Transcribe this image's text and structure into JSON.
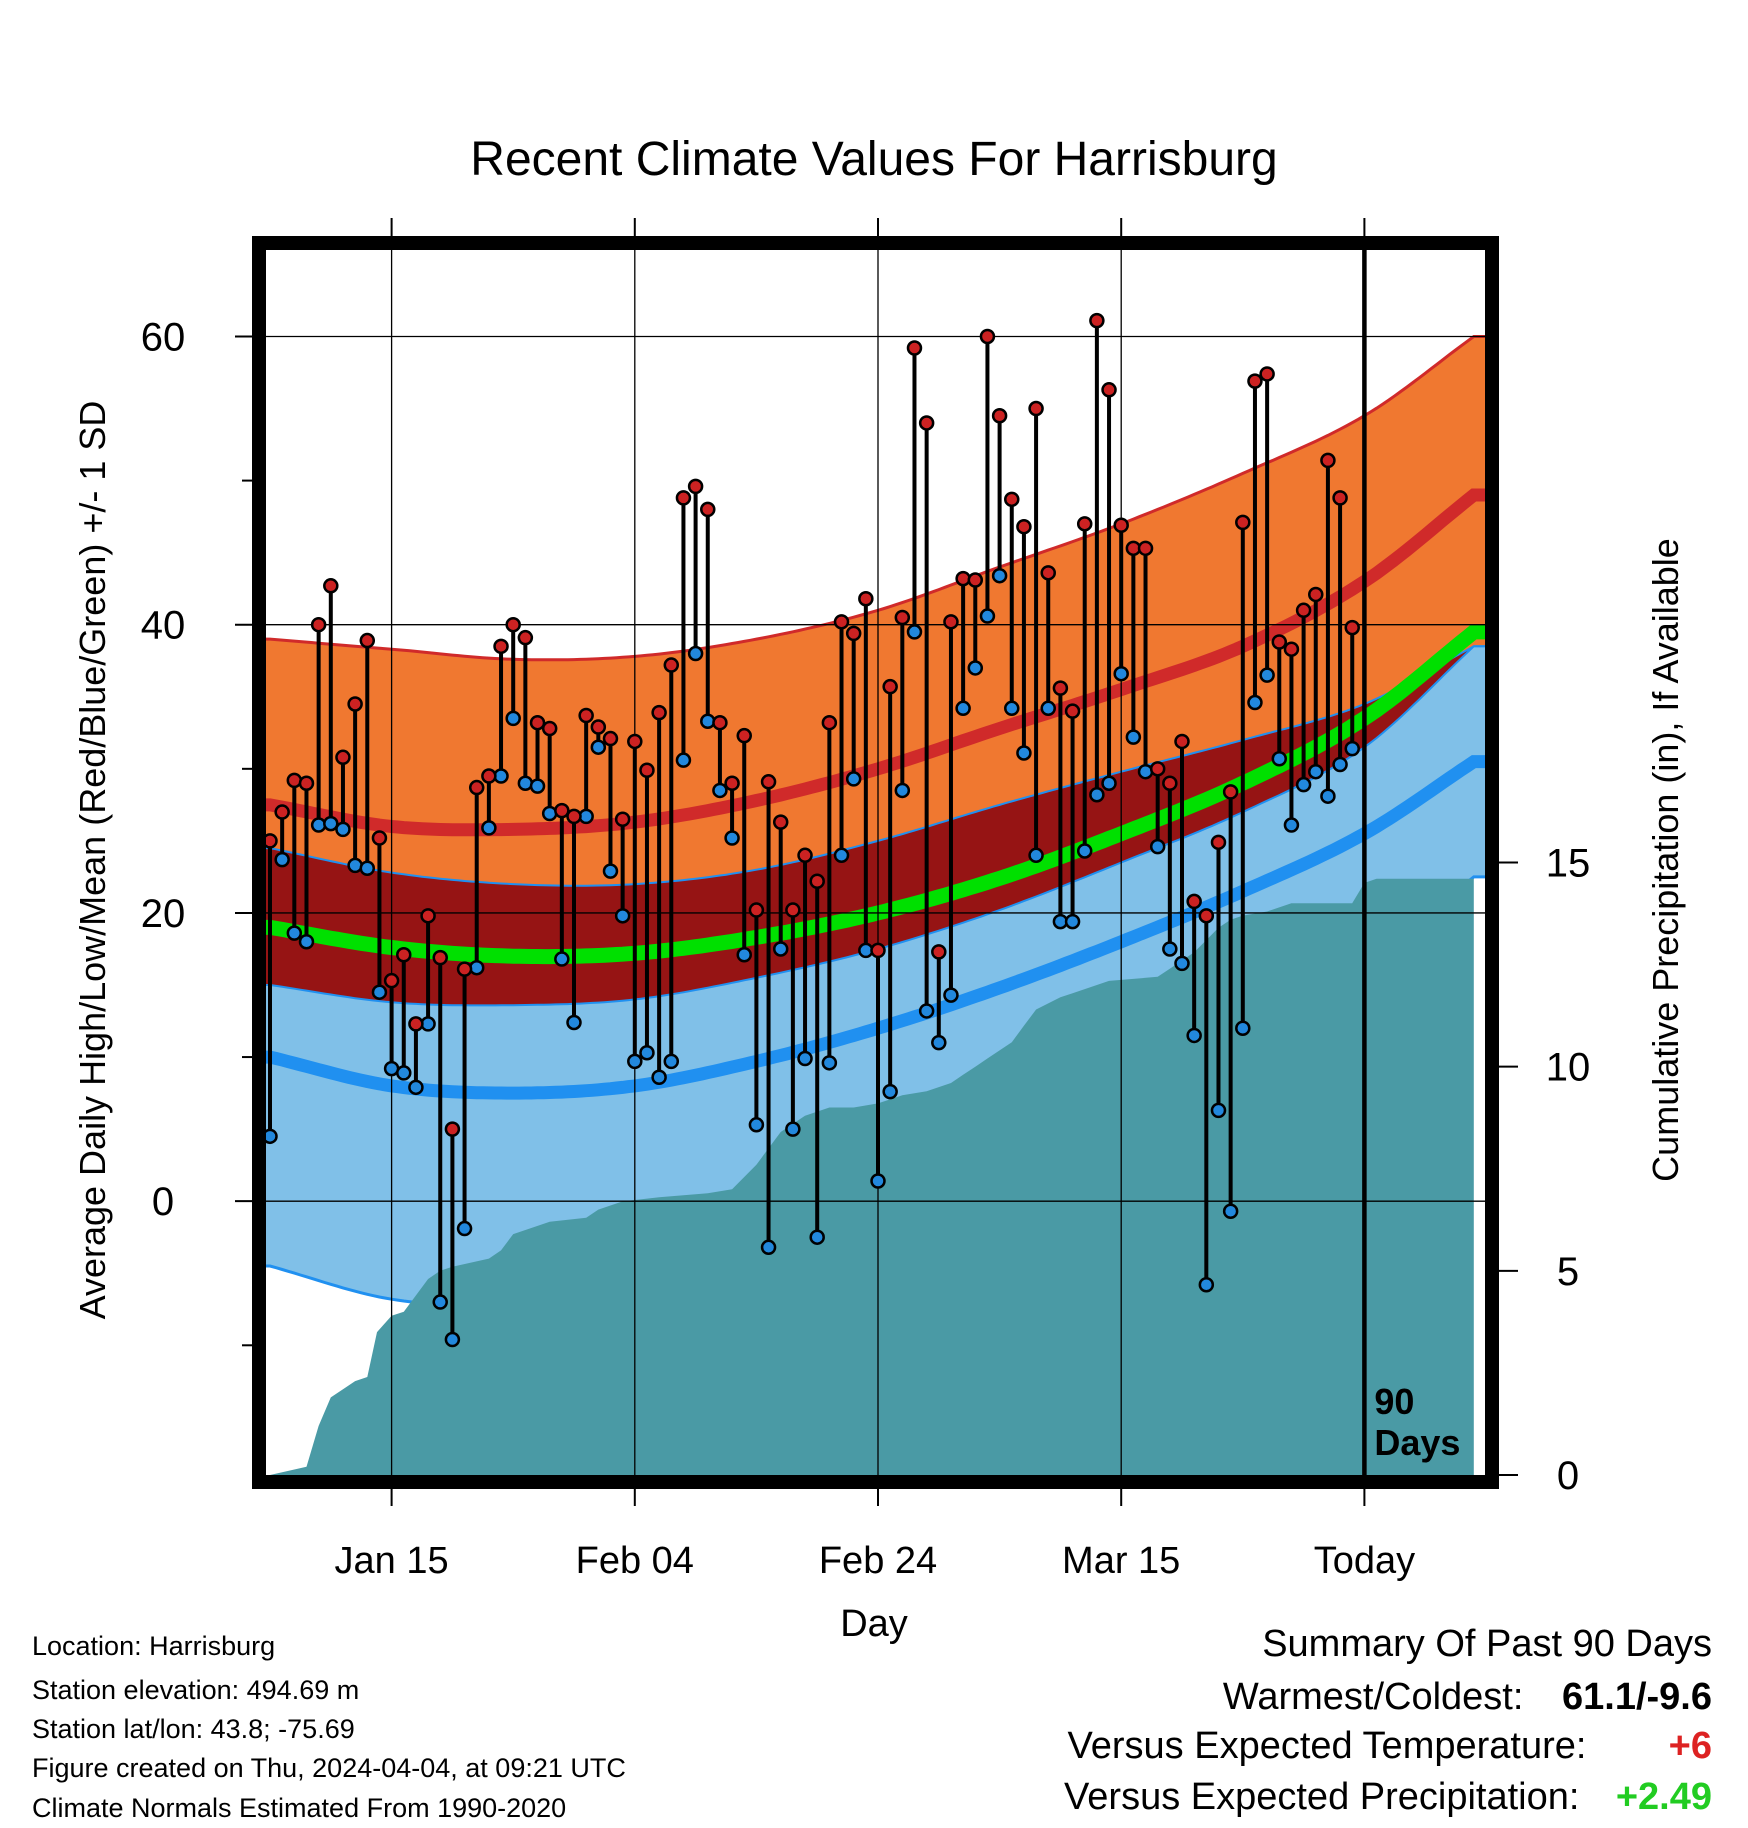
{
  "chart_data": {
    "type": "line",
    "title": "Recent Climate Values For Harrisburg",
    "xlabel": "Day",
    "ylabel": "Average Daily High/Low/Mean (Red/Blue/Green) +/- 1 SD",
    "y2label": "Cumulative Precipitation (in), If Available",
    "ylim": [
      -19,
      66
    ],
    "y2lim": [
      0,
      30
    ],
    "y_ticks": [
      0,
      20,
      40,
      60
    ],
    "y2_ticks": [
      0,
      5,
      10,
      15
    ],
    "x_ticks": [
      {
        "day": 10,
        "label": "Jan 15"
      },
      {
        "day": 30,
        "label": "Feb 04"
      },
      {
        "day": 50,
        "label": "Feb 24"
      },
      {
        "day": 70,
        "label": "Mar 15"
      },
      {
        "day": 90,
        "label": "Today"
      }
    ],
    "today_marker": {
      "day": 90,
      "label_line1": "90",
      "label_line2": "Days"
    },
    "grid": true,
    "normals": {
      "days": [
        0,
        10,
        20,
        30,
        40,
        50,
        60,
        70,
        80,
        90,
        99
      ],
      "high_mean": [
        27.5,
        26.0,
        25.8,
        26.3,
        27.8,
        30.0,
        32.8,
        35.5,
        38.5,
        43.0,
        49.0
      ],
      "high_upper": [
        39.0,
        38.3,
        37.6,
        37.8,
        39.0,
        41.0,
        44.0,
        47.0,
        50.5,
        54.5,
        60.0
      ],
      "high_lower": [
        24.5,
        22.8,
        22.0,
        22.0,
        23.0,
        25.0,
        27.5,
        29.8,
        32.0,
        34.5,
        38.5
      ],
      "mean_mean": [
        19.0,
        17.6,
        17.0,
        17.2,
        18.3,
        20.0,
        22.4,
        25.5,
        29.0,
        33.5,
        39.5
      ],
      "low_mean": [
        10.0,
        8.0,
        7.5,
        8.0,
        9.7,
        12.0,
        14.8,
        18.0,
        21.5,
        25.5,
        30.5
      ],
      "low_upper": [
        15.0,
        13.8,
        13.6,
        14.0,
        15.5,
        17.5,
        20.2,
        23.5,
        27.0,
        31.5,
        38.5
      ],
      "low_lower": [
        -4.5,
        -6.8,
        -7.2,
        -6.2,
        -4.2,
        -1.8,
        1.3,
        5.3,
        10.5,
        16.5,
        22.5
      ]
    },
    "series": [
      {
        "name": "High",
        "color": "#cc2222",
        "values": [
          25,
          27,
          29.2,
          29,
          40,
          42.7,
          30.8,
          34.5,
          38.9,
          25.2,
          15.3,
          17.1,
          12.3,
          19.8,
          16.9,
          5,
          16.1,
          28.7,
          29.5,
          38.5,
          40,
          39.1,
          33.2,
          32.8,
          27.1,
          26.7,
          33.7,
          32.9,
          32.1,
          26.5,
          31.9,
          29.9,
          33.9,
          37.2,
          48.8,
          49.6,
          48,
          33.2,
          29,
          32.3,
          20.2,
          29.1,
          26.3,
          20.2,
          24,
          22.2,
          33.2,
          40.2,
          39.4,
          41.8,
          17.4,
          35.7,
          40.5,
          59.2,
          54,
          17.3,
          40.2,
          43.2,
          43.1,
          60,
          54.5,
          48.7,
          46.8,
          55,
          43.6,
          35.6,
          34,
          47,
          61.1,
          56.3,
          46.9,
          45.3,
          45.3,
          30,
          29,
          31.9,
          20.8,
          19.8,
          24.9,
          28.4,
          47.1,
          56.9,
          57.4,
          38.8,
          38.3,
          41,
          42.1,
          51.4,
          48.8,
          39.8
        ]
      },
      {
        "name": "Low",
        "color": "#2288dd",
        "values": [
          4.5,
          23.7,
          18.6,
          18,
          26.1,
          26.2,
          25.8,
          23.3,
          23.1,
          14.5,
          9.2,
          8.9,
          7.9,
          12.3,
          -7,
          -9.6,
          -1.9,
          16.2,
          25.9,
          29.5,
          33.5,
          29,
          28.8,
          26.9,
          16.8,
          12.4,
          26.7,
          31.5,
          22.9,
          19.8,
          9.7,
          10.3,
          8.6,
          9.7,
          30.6,
          38,
          33.3,
          28.5,
          25.2,
          17.1,
          5.3,
          -3.2,
          17.5,
          5,
          9.9,
          -2.5,
          9.6,
          24,
          29.3,
          17.4,
          1.4,
          7.6,
          28.5,
          39.5,
          13.2,
          11,
          14.3,
          34.2,
          37,
          40.6,
          43.4,
          34.2,
          31.1,
          24,
          34.2,
          19.4,
          19.4,
          24.3,
          28.2,
          29,
          36.6,
          32.2,
          29.8,
          24.6,
          17.5,
          16.5,
          11.5,
          -5.8,
          6.3,
          -0.7,
          12,
          34.6,
          36.5,
          30.7,
          26.1,
          28.9,
          29.8,
          28.1,
          30.3,
          31.4
        ]
      }
    ],
    "precip_cumulative": {
      "days": [
        0,
        3,
        4,
        5,
        6,
        7,
        8,
        8.8,
        10,
        11,
        13,
        14,
        15,
        18,
        19,
        20,
        21,
        23,
        26,
        27,
        29,
        32,
        36,
        38,
        40,
        42,
        44,
        46,
        48,
        50,
        52,
        54,
        56,
        57,
        58,
        59,
        61,
        62,
        63,
        65,
        66,
        69,
        73,
        74,
        75,
        76,
        77,
        78,
        79,
        80,
        82,
        84,
        89,
        90,
        91,
        99
      ],
      "values": [
        0,
        0.2,
        1.2,
        1.9,
        2.1,
        2.3,
        2.4,
        3.5,
        3.9,
        4.0,
        4.8,
        5.0,
        5.1,
        5.3,
        5.5,
        5.9,
        6.0,
        6.2,
        6.3,
        6.5,
        6.7,
        6.8,
        6.9,
        7.0,
        7.6,
        8.4,
        8.8,
        9.0,
        9.0,
        9.1,
        9.3,
        9.4,
        9.6,
        9.8,
        10.0,
        10.2,
        10.6,
        11.0,
        11.4,
        11.7,
        11.8,
        12.1,
        12.2,
        12.4,
        12.6,
        12.8,
        13.1,
        13.4,
        13.6,
        13.7,
        13.8,
        14.0,
        14.0,
        14.5,
        14.6,
        14.6
      ]
    },
    "colors": {
      "high_band": "#f07830",
      "high_line": "#d02a2a",
      "overlap_band": "#961414",
      "mean_line": "#00e000",
      "low_band": "#80c0e8",
      "low_line": "#2090f0",
      "precip_fill": "#4a9aa5",
      "frame": "#000000"
    }
  },
  "info": {
    "location": "Location: Harrisburg",
    "elevation": "Station elevation: 494.69 m",
    "latlon": "Station lat/lon: 43.8; -75.69",
    "created": "Figure created on Thu, 2024-04-04, at 09:21 UTC",
    "normals": "Climate Normals Estimated From 1990-2020"
  },
  "summary": {
    "title": "Summary Of Past 90 Days",
    "warmest_label": "Warmest/Coldest:",
    "warmest_value": "61.1/-9.6",
    "temp_label": "Versus Expected Temperature:",
    "temp_value": "+6",
    "temp_color": "#dd2222",
    "precip_label": "Versus Expected Precipitation:",
    "precip_value": "+2.49",
    "precip_color": "#22cc22"
  }
}
